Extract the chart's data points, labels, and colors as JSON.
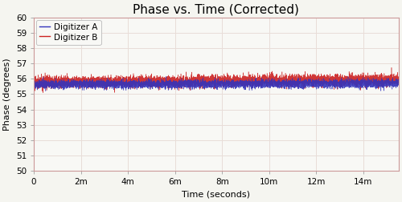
{
  "title": "Phase vs. Time (Corrected)",
  "xlabel": "Time (seconds)",
  "ylabel": "Phase (degrees)",
  "xlim": [
    0,
    15500
  ],
  "ylim": [
    50,
    60
  ],
  "yticks": [
    50,
    51,
    52,
    53,
    54,
    55,
    56,
    57,
    58,
    59,
    60
  ],
  "xtick_positions": [
    0,
    2000,
    4000,
    6000,
    8000,
    10000,
    12000,
    14000
  ],
  "xtick_labels": [
    "0",
    "2m",
    "4m",
    "6m",
    "8m",
    "10m",
    "12m",
    "14m"
  ],
  "digitizer_a_color": "#3333bb",
  "digitizer_b_color": "#cc2222",
  "mean_a": 55.62,
  "mean_b": 55.78,
  "noise_a": 0.13,
  "noise_b": 0.18,
  "n_points": 8000,
  "background_color": "#f5f5f0",
  "plot_bg_color": "#f8f8f5",
  "grid_color": "#e8ddd8",
  "border_color": "#cc9999",
  "legend_labels": [
    "Digitizer A",
    "Digitizer B"
  ],
  "title_fontsize": 11,
  "axis_fontsize": 8,
  "tick_fontsize": 7.5,
  "figure_width": 5.0,
  "figure_height": 2.52,
  "dpi": 100
}
